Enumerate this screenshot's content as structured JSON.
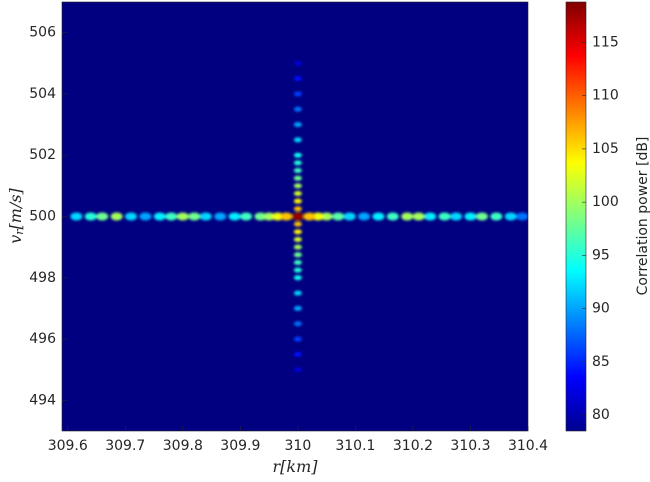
{
  "chart_data": {
    "type": "heatmap",
    "xlabel": [
      "r",
      "[km]"
    ],
    "ylabel": [
      "v",
      "r",
      "[m/s]"
    ],
    "colorbar_label": "Correlation power [dB]",
    "colormap": "jet",
    "background_value": 78.5,
    "xlim": [
      309.59,
      310.4
    ],
    "ylim": [
      493,
      507
    ],
    "clim": [
      78.5,
      118.8
    ],
    "xticks": [
      309.6,
      309.7,
      309.8,
      309.9,
      310,
      310.1,
      310.2,
      310.3,
      310.4
    ],
    "yticks": [
      494,
      496,
      498,
      500,
      502,
      504,
      506
    ],
    "cticks": [
      80,
      85,
      90,
      95,
      100,
      105,
      110,
      115
    ],
    "x": [
      309.615,
      309.64,
      309.66,
      309.685,
      309.71,
      309.735,
      309.76,
      309.78,
      309.8,
      309.82,
      309.84,
      309.865,
      309.89,
      309.91,
      309.935,
      309.95,
      309.965,
      309.98,
      310,
      310.02,
      310.035,
      310.05,
      310.07,
      310.09,
      310.115,
      310.14,
      310.165,
      310.19,
      310.21,
      310.23,
      310.255,
      310.275,
      310.3,
      310.32,
      310.345,
      310.37,
      310.39,
      310,
      310,
      310,
      310,
      310,
      310,
      310,
      310,
      310,
      310,
      310,
      310,
      310,
      310,
      310,
      310,
      310,
      310,
      310,
      310,
      310,
      310,
      310,
      310,
      310,
      310,
      310,
      310
    ],
    "y": [
      500,
      500,
      500,
      500,
      500,
      500,
      500,
      500,
      500,
      500,
      500,
      500,
      500,
      500,
      500,
      500,
      500,
      500,
      500,
      500,
      500,
      500,
      500,
      500,
      500,
      500,
      500,
      500,
      500,
      500,
      500,
      500,
      500,
      500,
      500,
      500,
      500,
      500.25,
      500.5,
      500.75,
      501,
      501.25,
      501.5,
      501.75,
      502,
      502.5,
      503,
      503.5,
      504,
      504.5,
      505,
      499.75,
      499.5,
      499.25,
      499,
      498.75,
      498.5,
      498.25,
      498,
      497.5,
      497,
      496.5,
      496,
      495.5,
      495
    ],
    "values": [
      92,
      95,
      98,
      100,
      92,
      90,
      93,
      96,
      100,
      98,
      92,
      90,
      93,
      96,
      98,
      100,
      103,
      106,
      118,
      106,
      103,
      100,
      97,
      92,
      90,
      93,
      96,
      100,
      100,
      93,
      96,
      92,
      93,
      98,
      96,
      92,
      88,
      106,
      104,
      102,
      100,
      98,
      96,
      95,
      94,
      92,
      90,
      88,
      86,
      84,
      82,
      106,
      104,
      102,
      100,
      98,
      96,
      95,
      94,
      92,
      90,
      88,
      86,
      84,
      82
    ]
  }
}
